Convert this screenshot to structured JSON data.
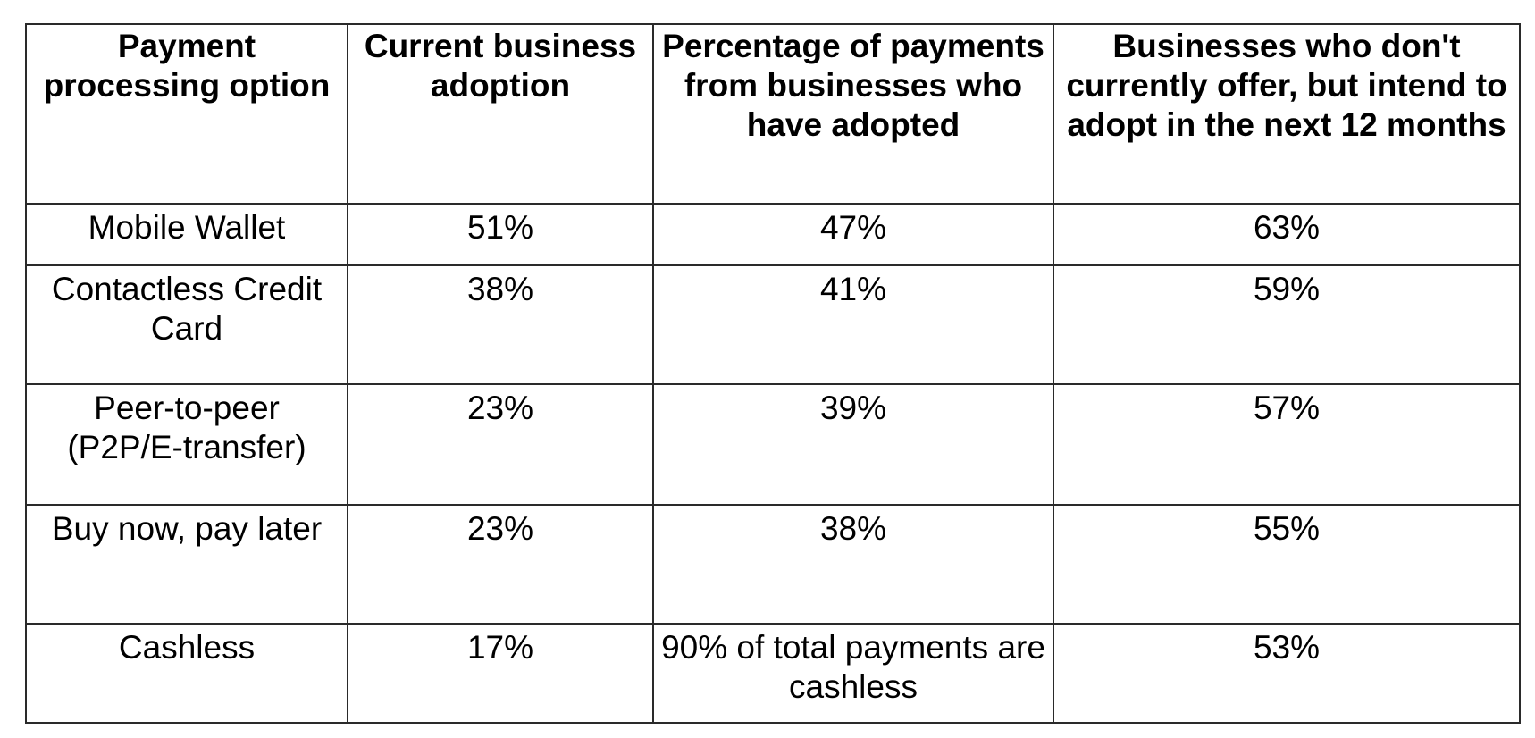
{
  "table": {
    "headers": [
      "Payment processing option",
      "Current business adoption",
      "Percentage of payments from businesses who have adopted",
      "Businesses who don't currently offer, but intend to adopt in the next 12 months"
    ],
    "rows": [
      [
        "Mobile Wallet",
        "51%",
        "47%",
        "63%"
      ],
      [
        "Contactless Credit Card",
        "38%",
        "41%",
        "59%"
      ],
      [
        "Peer-to-peer (P2P/E-transfer)",
        "23%",
        "39%",
        "57%"
      ],
      [
        "Buy now, pay later",
        "23%",
        "38%",
        "55%"
      ],
      [
        "Cashless",
        "17%",
        "90% of total payments are cashless",
        "53%"
      ]
    ]
  }
}
